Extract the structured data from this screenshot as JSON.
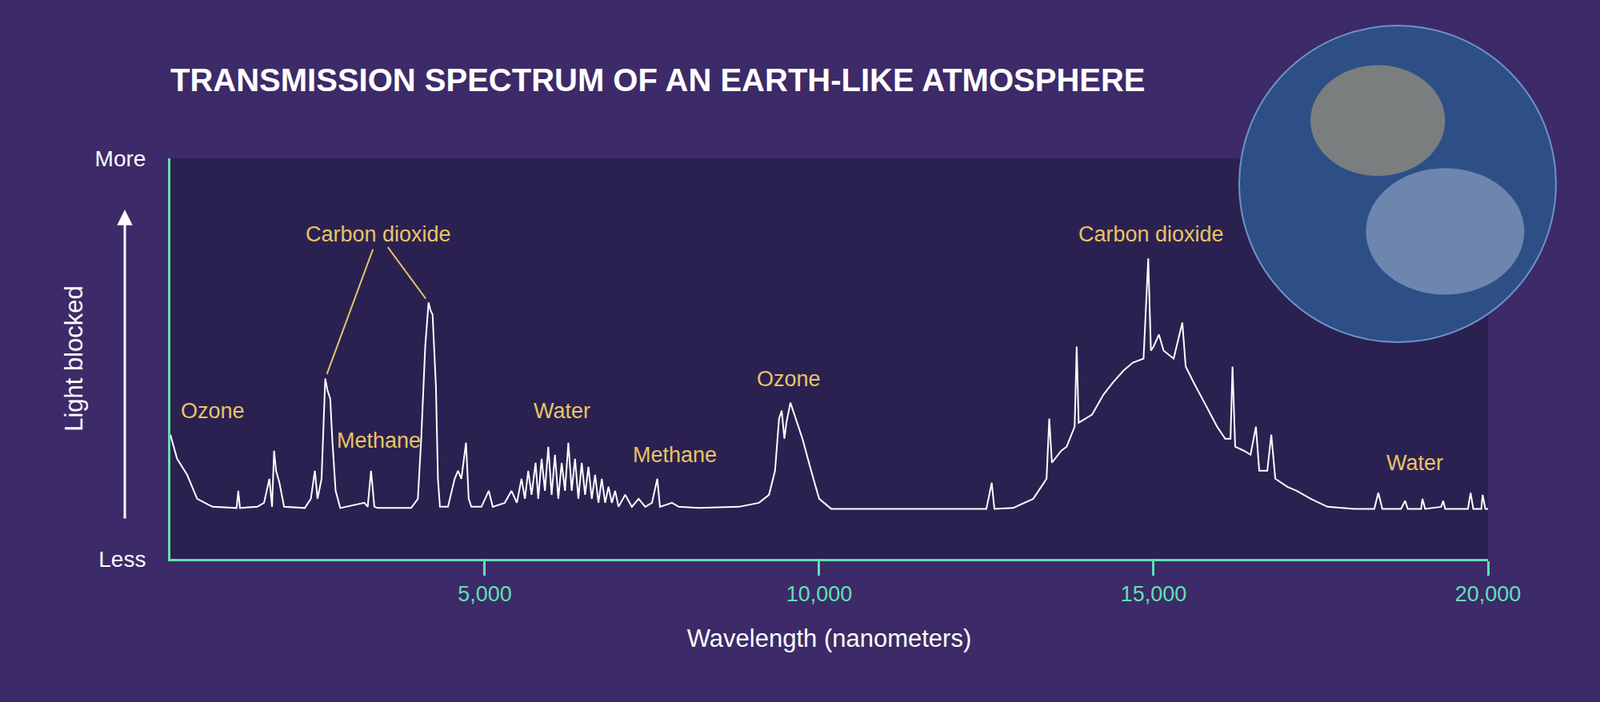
{
  "chart_data": {
    "type": "line",
    "title": "TRANSMISSION SPECTRUM OF AN EARTH-LIKE ATMOSPHERE",
    "x_label": "Wavelength (nanometers)",
    "y_label": "Light blocked",
    "color": "#ffffff",
    "grid": false,
    "xlim": [
      300,
      20000
    ],
    "xticks": [
      {
        "value": 5000,
        "label": "5,000"
      },
      {
        "value": 10000,
        "label": "10,000"
      },
      {
        "value": 15000,
        "label": "15,000"
      },
      {
        "value": 20000,
        "label": "20,000"
      }
    ],
    "ylim": [
      0,
      1
    ],
    "yticks": [
      {
        "value": 0,
        "label": "Less"
      },
      {
        "value": 1,
        "label": "More"
      }
    ],
    "x": [
      300,
      400,
      550,
      700,
      930,
      1240,
      1290,
      1315,
      1340,
      1600,
      1700,
      1780,
      1820,
      1850,
      1880,
      1930,
      2000,
      2310,
      2400,
      2460,
      2500,
      2560,
      2615,
      2650,
      2690,
      2720,
      2770,
      2840,
      3200,
      3250,
      3300,
      3350,
      3400,
      3900,
      4000,
      4050,
      4110,
      4160,
      4190,
      4220,
      4270,
      4300,
      4330,
      4450,
      4550,
      4600,
      4650,
      4720,
      4760,
      4800,
      4950,
      5060,
      5120,
      5300,
      5400,
      5480,
      5550,
      5600,
      5650,
      5700,
      5760,
      5800,
      5850,
      5900,
      5950,
      6000,
      6050,
      6100,
      6150,
      6200,
      6250,
      6300,
      6350,
      6400,
      6450,
      6500,
      6550,
      6600,
      6650,
      6700,
      6750,
      6800,
      6850,
      6900,
      6950,
      7000,
      7100,
      7200,
      7300,
      7400,
      7500,
      7580,
      7620,
      7800,
      7900,
      8200,
      8800,
      9100,
      9250,
      9340,
      9400,
      9440,
      9480,
      9510,
      9570,
      9650,
      9750,
      9880,
      10000,
      10180,
      12500,
      12580,
      12620,
      12900,
      13010,
      13200,
      13320,
      13400,
      13440,
      13480,
      13620,
      13700,
      13820,
      13850,
      13880,
      14080,
      14250,
      14390,
      14550,
      14690,
      14850,
      14920,
      14960,
      15000,
      15080,
      15150,
      15300,
      15430,
      15480,
      15600,
      15760,
      15950,
      16070,
      16150,
      16180,
      16220,
      16350,
      16450,
      16530,
      16580,
      16700,
      16760,
      16820,
      17000,
      17140,
      17350,
      17600,
      18000,
      18300,
      18360,
      18420,
      18700,
      18760,
      18800,
      19000,
      19020,
      19060,
      19300,
      19330,
      19360,
      19700,
      19740,
      19780,
      19900,
      19920,
      19960,
      20000
    ],
    "values": [
      0.31,
      0.25,
      0.21,
      0.15,
      0.13,
      0.127,
      0.127,
      0.17,
      0.127,
      0.13,
      0.14,
      0.2,
      0.13,
      0.27,
      0.22,
      0.19,
      0.13,
      0.127,
      0.15,
      0.22,
      0.15,
      0.2,
      0.45,
      0.42,
      0.4,
      0.3,
      0.17,
      0.127,
      0.14,
      0.13,
      0.22,
      0.13,
      0.127,
      0.127,
      0.15,
      0.3,
      0.53,
      0.64,
      0.62,
      0.61,
      0.43,
      0.2,
      0.13,
      0.13,
      0.2,
      0.22,
      0.2,
      0.29,
      0.15,
      0.13,
      0.13,
      0.17,
      0.13,
      0.14,
      0.17,
      0.14,
      0.2,
      0.15,
      0.22,
      0.16,
      0.24,
      0.15,
      0.25,
      0.17,
      0.28,
      0.16,
      0.26,
      0.15,
      0.24,
      0.17,
      0.29,
      0.17,
      0.25,
      0.15,
      0.24,
      0.16,
      0.23,
      0.15,
      0.21,
      0.14,
      0.2,
      0.14,
      0.18,
      0.14,
      0.17,
      0.13,
      0.16,
      0.13,
      0.15,
      0.13,
      0.14,
      0.2,
      0.13,
      0.14,
      0.13,
      0.127,
      0.13,
      0.14,
      0.16,
      0.22,
      0.35,
      0.37,
      0.3,
      0.34,
      0.39,
      0.35,
      0.3,
      0.22,
      0.15,
      0.125,
      0.125,
      0.19,
      0.125,
      0.127,
      0.135,
      0.15,
      0.18,
      0.2,
      0.35,
      0.24,
      0.27,
      0.28,
      0.33,
      0.53,
      0.34,
      0.36,
      0.41,
      0.44,
      0.47,
      0.49,
      0.5,
      0.75,
      0.52,
      0.53,
      0.56,
      0.52,
      0.5,
      0.59,
      0.48,
      0.44,
      0.39,
      0.33,
      0.3,
      0.3,
      0.48,
      0.28,
      0.27,
      0.26,
      0.33,
      0.22,
      0.22,
      0.31,
      0.2,
      0.18,
      0.17,
      0.15,
      0.13,
      0.125,
      0.125,
      0.165,
      0.125,
      0.125,
      0.145,
      0.125,
      0.125,
      0.15,
      0.125,
      0.13,
      0.145,
      0.125,
      0.125,
      0.165,
      0.125,
      0.125,
      0.16,
      0.125,
      0.125
    ],
    "annotations": [
      {
        "text": "Ozone",
        "x": 930,
        "y": 0.37
      },
      {
        "text": "Carbon dioxide",
        "x": 3410,
        "y": 0.81
      },
      {
        "text": "Methane",
        "x": 3410,
        "y": 0.295
      },
      {
        "text": "Water",
        "x": 6160,
        "y": 0.37
      },
      {
        "text": "Methane",
        "x": 7840,
        "y": 0.26
      },
      {
        "text": "Ozone",
        "x": 9540,
        "y": 0.45
      },
      {
        "text": "Carbon dioxide",
        "x": 14970,
        "y": 0.81
      },
      {
        "text": "Water",
        "x": 18900,
        "y": 0.24
      }
    ]
  }
}
